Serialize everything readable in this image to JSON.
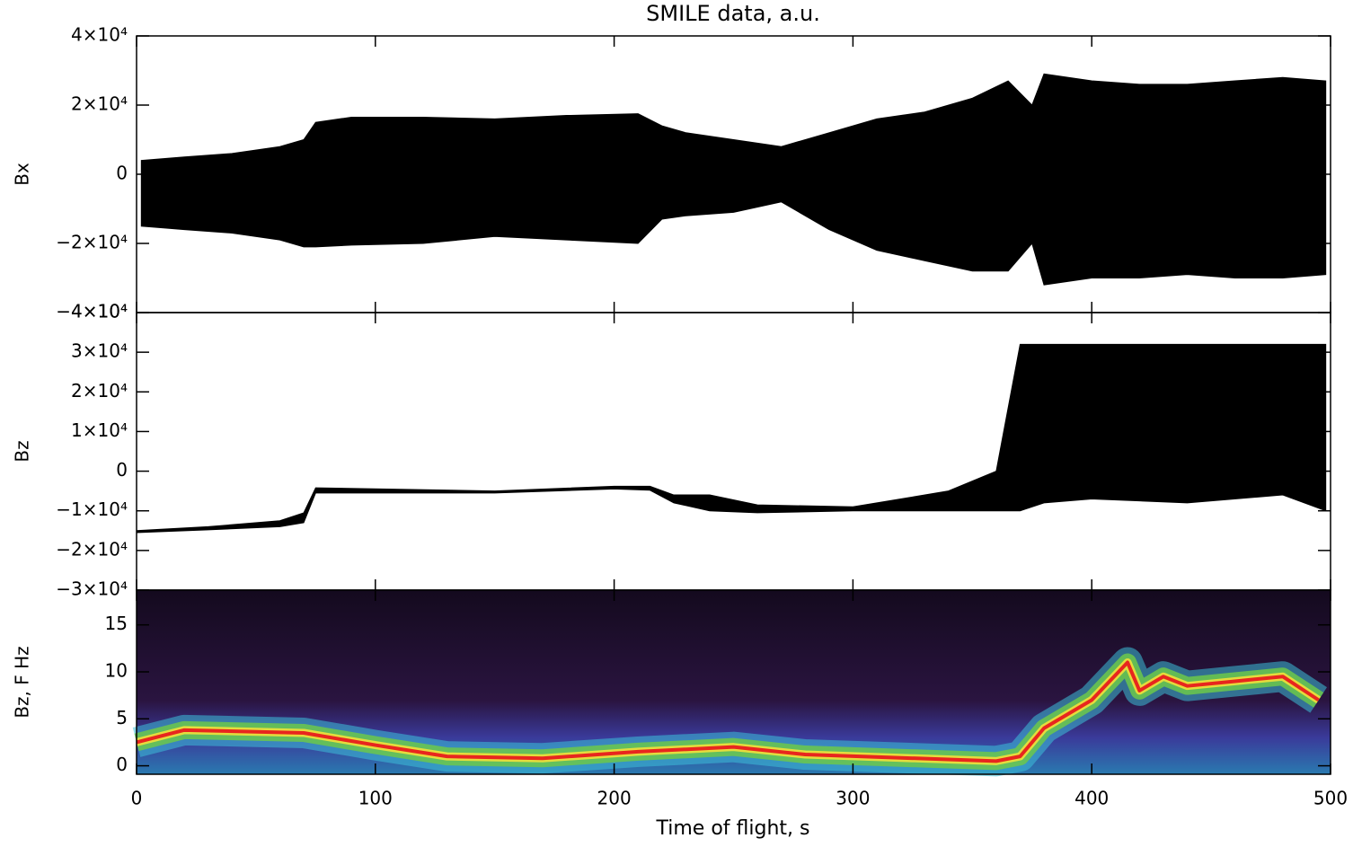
{
  "chart_data": [
    {
      "type": "range",
      "title": "SMILE data, a.u.",
      "ylabel": "Bx",
      "color": "#000000",
      "x": [
        2,
        20,
        40,
        60,
        70,
        75,
        90,
        120,
        150,
        180,
        210,
        220,
        230,
        250,
        270,
        290,
        310,
        330,
        350,
        365,
        375,
        380,
        400,
        420,
        440,
        460,
        480,
        498
      ],
      "high": [
        4000,
        5000,
        6000,
        8000,
        10000,
        15000,
        16500,
        16500,
        16000,
        17000,
        17500,
        14000,
        12000,
        10000,
        8000,
        12000,
        16000,
        18000,
        22000,
        27000,
        20000,
        29000,
        27000,
        26000,
        26000,
        27000,
        28000,
        27000
      ],
      "low": [
        -15000,
        -16000,
        -17000,
        -19000,
        -21000,
        -21000,
        -20500,
        -20000,
        -18000,
        -19000,
        -20000,
        -13000,
        -12000,
        -11000,
        -8000,
        -16000,
        -22000,
        -25000,
        -28000,
        -28000,
        -20000,
        -32000,
        -30000,
        -30000,
        -29000,
        -30000,
        -30000,
        -29000
      ],
      "xlim": [
        0,
        500
      ],
      "xticks": [
        0,
        100,
        200,
        300,
        400,
        500
      ],
      "ylim": [
        -40000,
        40000
      ],
      "yticks": [
        {
          "value": -40000,
          "label": "−4×10⁴"
        },
        {
          "value": -20000,
          "label": "−2×10⁴"
        },
        0,
        {
          "value": 20000,
          "label": "2×10⁴"
        },
        {
          "value": 40000,
          "label": "4×10⁴"
        }
      ]
    },
    {
      "type": "range",
      "ylabel": "Bz",
      "color": "#000000",
      "x": [
        0,
        30,
        60,
        70,
        75,
        150,
        200,
        215,
        225,
        240,
        260,
        300,
        340,
        360,
        370,
        380,
        400,
        440,
        480,
        498
      ],
      "high": [
        -15000,
        -14000,
        -12500,
        -10500,
        -4200,
        -5000,
        -3800,
        -3800,
        -6000,
        -6000,
        -8500,
        -9000,
        -5000,
        0,
        32000,
        32000,
        32000,
        32000,
        32000,
        32000
      ],
      "low": [
        -15500,
        -14800,
        -14000,
        -13000,
        -5500,
        -5500,
        -4500,
        -4800,
        -8000,
        -10000,
        -10500,
        -10000,
        -10000,
        -10000,
        -10000,
        -8000,
        -7000,
        -8000,
        -6000,
        -10000
      ],
      "xlim": [
        0,
        500
      ],
      "xticks": [
        0,
        100,
        200,
        300,
        400,
        500
      ],
      "ylim": [
        -30000,
        40000
      ],
      "yticks": [
        {
          "value": -30000,
          "label": "−3×10⁴"
        },
        {
          "value": -20000,
          "label": "−2×10⁴"
        },
        {
          "value": -10000,
          "label": "−1×10⁴"
        },
        0,
        {
          "value": 10000,
          "label": "1×10⁴"
        },
        {
          "value": 20000,
          "label": "2×10⁴"
        },
        {
          "value": 30000,
          "label": "3×10⁴"
        },
        {
          "value": 40000,
          "label": "4×10⁴"
        }
      ]
    },
    {
      "type": "spectrogram",
      "ylabel": "Bz, F Hz",
      "xlabel": "Time of flight, s",
      "color": "#e8261e",
      "x": [
        0,
        20,
        70,
        100,
        130,
        170,
        210,
        250,
        280,
        360,
        370,
        380,
        400,
        415,
        420,
        430,
        440,
        460,
        480,
        495
      ],
      "values": [
        2.5,
        3.8,
        3.5,
        2.2,
        1,
        0.8,
        1.5,
        2,
        1.2,
        0.5,
        1,
        4,
        7,
        11,
        8,
        9.5,
        8.5,
        9,
        9.5,
        7
      ],
      "xlim": [
        0,
        500
      ],
      "xticks": [
        0,
        100,
        200,
        300,
        400,
        500
      ],
      "ylim": [
        -0.9,
        18.7
      ],
      "yticks": [
        0,
        5,
        10,
        15
      ]
    }
  ]
}
